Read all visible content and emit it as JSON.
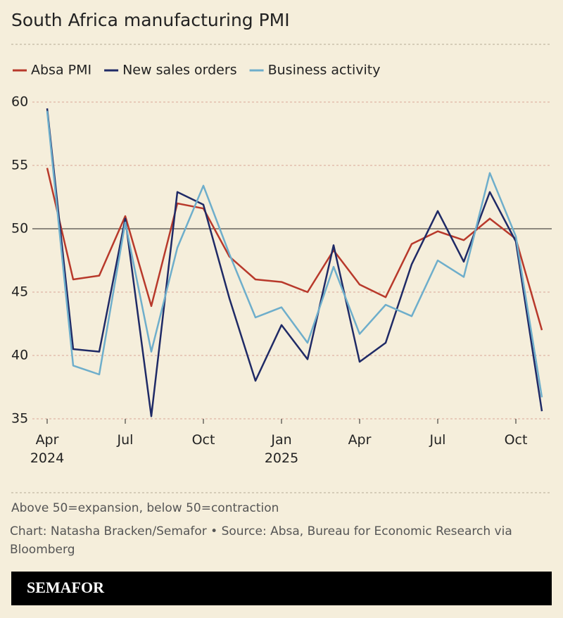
{
  "chart_data": {
    "type": "line",
    "title": "South Africa manufacturing PMI",
    "categories": [
      "Apr 2024",
      null,
      null,
      "Jul",
      null,
      null,
      "Oct",
      null,
      null,
      "Jan 2025",
      null,
      null,
      "Apr",
      null,
      null,
      "Jul",
      null,
      null,
      "Oct",
      null
    ],
    "series": [
      {
        "name": "Absa PMI",
        "color": "#b8392b",
        "values": [
          54.8,
          46.0,
          46.3,
          51.0,
          43.9,
          52.0,
          51.6,
          47.8,
          46.0,
          45.8,
          45.0,
          48.3,
          45.6,
          44.6,
          48.8,
          49.8,
          49.1,
          50.8,
          49.2,
          42.0
        ]
      },
      {
        "name": "New sales orders",
        "color": "#1f2a66",
        "values": [
          59.5,
          40.5,
          40.3,
          50.8,
          35.2,
          52.9,
          51.9,
          44.5,
          38.0,
          42.4,
          39.7,
          48.7,
          39.5,
          41.0,
          47.2,
          51.4,
          47.4,
          52.9,
          49.0,
          35.6
        ]
      },
      {
        "name": "Business activity",
        "color": "#6eaecb",
        "values": [
          59.3,
          39.2,
          38.5,
          50.5,
          40.3,
          48.5,
          53.4,
          48.0,
          43.0,
          43.8,
          41.0,
          47.0,
          41.7,
          44.0,
          43.1,
          47.5,
          46.2,
          54.4,
          49.4,
          36.7
        ]
      }
    ],
    "ylim": [
      35,
      60
    ],
    "yticks": [
      35,
      40,
      45,
      50,
      55,
      60
    ],
    "grid": true,
    "reference_line": 50,
    "note": "Above 50=expansion, below 50=contraction",
    "source": "Chart: Natasha Bracken/Semafor • Source: Absa, Bureau for Economic Research via Bloomberg",
    "brand": "SEMAFOR"
  }
}
